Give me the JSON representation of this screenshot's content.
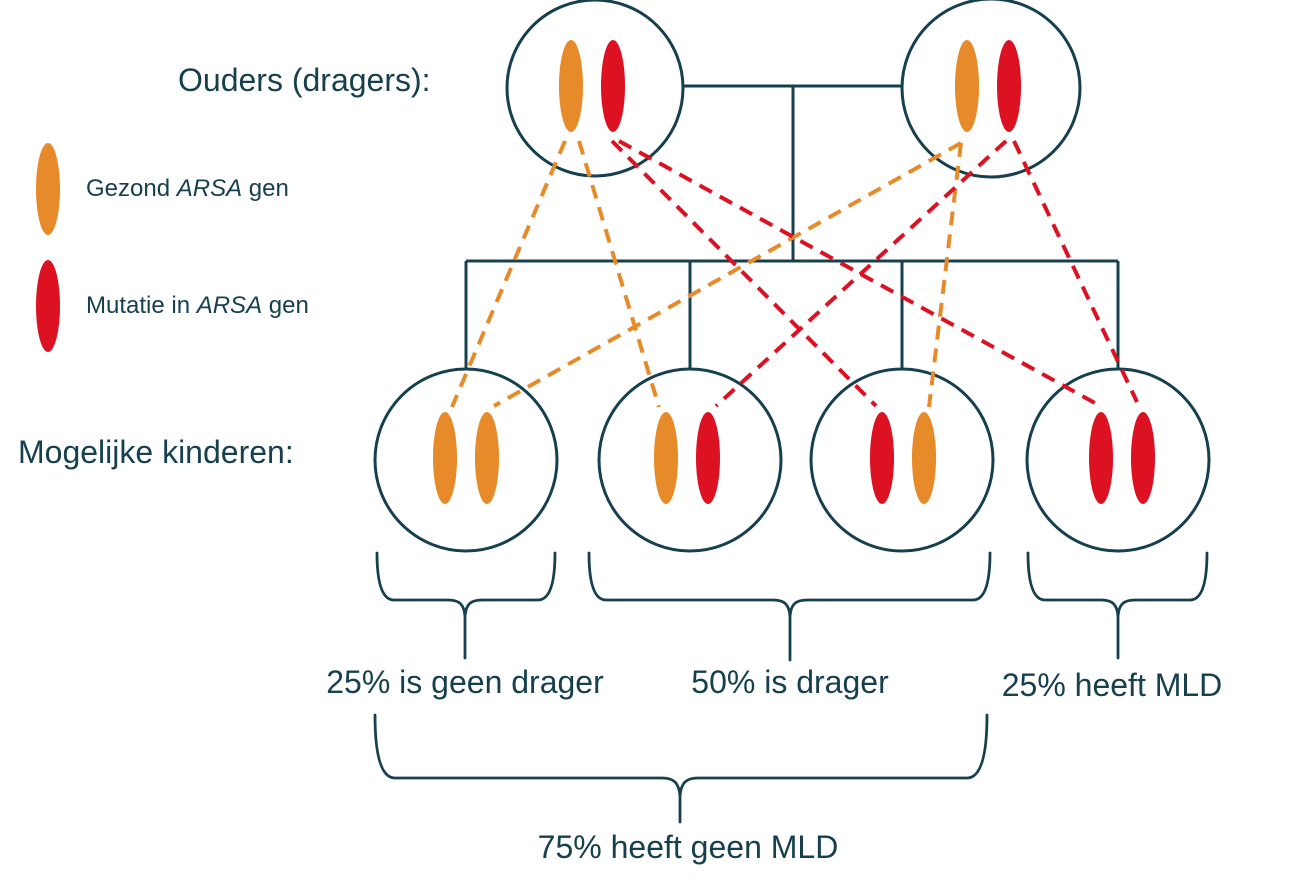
{
  "title_parents": "Ouders (dragers):",
  "title_children": "Mogelijke kinderen:",
  "colors": {
    "orange": "#E78A2A",
    "red": "#DC1222",
    "teal": "#17404F"
  },
  "legend": {
    "items": [
      {
        "color": "orange",
        "pre": "Gezond ",
        "gene": "ARSA",
        "post": " gen"
      },
      {
        "color": "red",
        "pre": "Mutatie in ",
        "gene": "ARSA",
        "post": " gen"
      }
    ]
  },
  "diagram": {
    "parents": [
      {
        "genes": [
          "orange",
          "red"
        ]
      },
      {
        "genes": [
          "orange",
          "red"
        ]
      }
    ],
    "children": [
      {
        "genes": [
          "orange",
          "orange"
        ]
      },
      {
        "genes": [
          "orange",
          "red"
        ]
      },
      {
        "genes": [
          "red",
          "orange"
        ]
      },
      {
        "genes": [
          "red",
          "red"
        ]
      }
    ]
  },
  "labels": {
    "no_carrier": "25% is geen drager",
    "carrier": "50% is drager",
    "mld": "25% heeft MLD",
    "no_mld": "75% heeft geen MLD"
  }
}
